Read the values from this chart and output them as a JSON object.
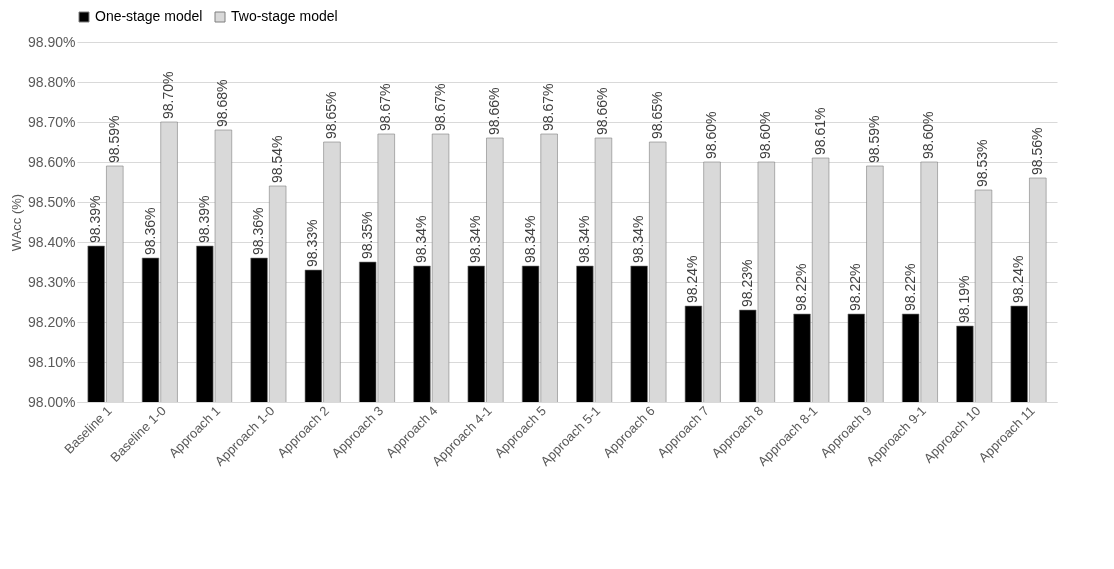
{
  "chart_data": {
    "type": "bar",
    "ylabel": "WAcc (%)",
    "categories": [
      "Baseline 1",
      "Baseline 1-0",
      "Approach 1",
      "Approach 1-0",
      "Approach 2",
      "Approach 3",
      "Approach 4",
      "Approach 4-1",
      "Approach 5",
      "Approach 5-1",
      "Approach 6",
      "Approach 7",
      "Approach 8",
      "Approach 8-1",
      "Approach 9",
      "Approach 9-1",
      "Approach 10",
      "Approach 11"
    ],
    "series": [
      {
        "name": "One-stage model",
        "color": "#000000",
        "values": [
          98.39,
          98.36,
          98.39,
          98.36,
          98.33,
          98.35,
          98.34,
          98.34,
          98.34,
          98.34,
          98.34,
          98.24,
          98.23,
          98.22,
          98.22,
          98.22,
          98.19,
          98.24
        ],
        "value_labels": [
          "98.39%",
          "98.36%",
          "98.39%",
          "98.36%",
          "98.33%",
          "98.35%",
          "98.34%",
          "98.34%",
          "98.34%",
          "98.34%",
          "98.34%",
          "98.24%",
          "98.23%",
          "98.22%",
          "98.22%",
          "98.22%",
          "98.19%",
          "98.24%"
        ]
      },
      {
        "name": "Two-stage model",
        "color": "#d9d9d9",
        "values": [
          98.59,
          98.7,
          98.68,
          98.54,
          98.65,
          98.67,
          98.67,
          98.66,
          98.67,
          98.66,
          98.65,
          98.6,
          98.6,
          98.61,
          98.59,
          98.6,
          98.53,
          98.56
        ],
        "value_labels": [
          "98.59%",
          "98.70%",
          "98.68%",
          "98.54%",
          "98.65%",
          "98.67%",
          "98.67%",
          "98.66%",
          "98.67%",
          "98.66%",
          "98.65%",
          "98.60%",
          "98.60%",
          "98.61%",
          "98.59%",
          "98.60%",
          "98.53%",
          "98.56%"
        ]
      }
    ],
    "ylim": [
      98.0,
      98.9
    ],
    "yticks": [
      {
        "value": 98.0,
        "label": "98.00%"
      },
      {
        "value": 98.1,
        "label": "98.10%"
      },
      {
        "value": 98.2,
        "label": "98.20%"
      },
      {
        "value": 98.3,
        "label": "98.30%"
      },
      {
        "value": 98.4,
        "label": "98.40%"
      },
      {
        "value": 98.5,
        "label": "98.50%"
      },
      {
        "value": 98.6,
        "label": "98.60%"
      },
      {
        "value": 98.7,
        "label": "98.70%"
      },
      {
        "value": 98.8,
        "label": "98.80%"
      },
      {
        "value": 98.9,
        "label": "98.90%"
      }
    ],
    "grid": "y",
    "legend": "top"
  }
}
